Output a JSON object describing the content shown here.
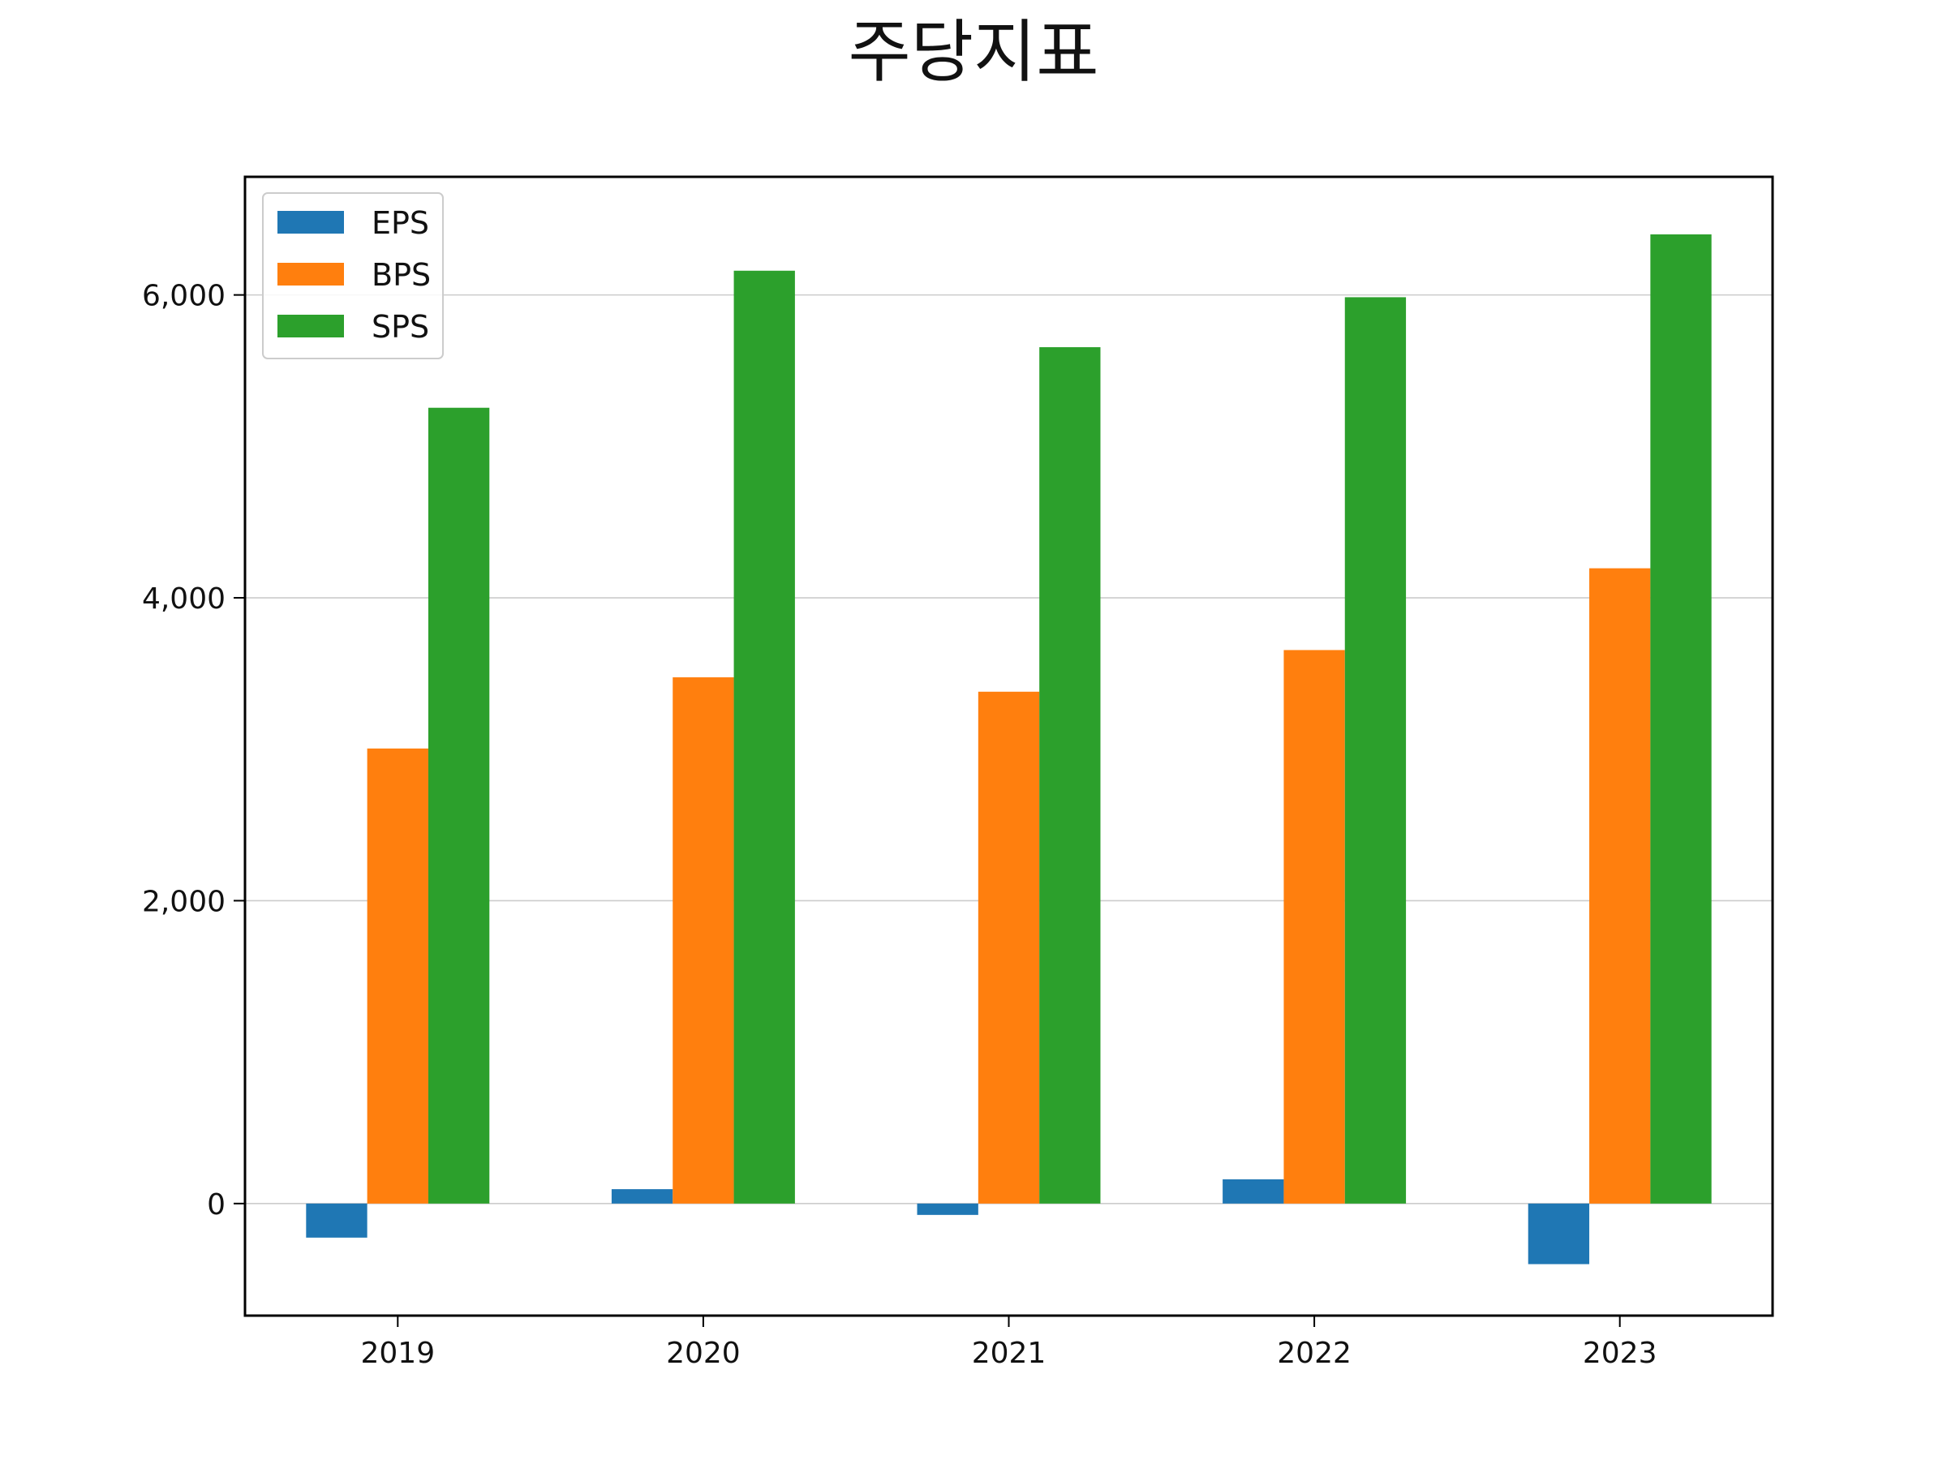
{
  "chart_data": {
    "type": "bar",
    "title": "주당지표",
    "xlabel": "",
    "ylabel": "",
    "categories": [
      "2019",
      "2020",
      "2021",
      "2022",
      "2023"
    ],
    "series": [
      {
        "name": "EPS",
        "color": "#1f77b4",
        "values": [
          -225,
          95,
          -75,
          160,
          -400
        ]
      },
      {
        "name": "BPS",
        "color": "#ff7f0e",
        "values": [
          3005,
          3475,
          3380,
          3655,
          4195
        ]
      },
      {
        "name": "SPS",
        "color": "#2ca02c",
        "values": [
          5255,
          6160,
          5655,
          5985,
          6400
        ]
      }
    ],
    "ylim": [
      -740,
      6780
    ],
    "yticks": [
      0,
      2000,
      4000,
      6000
    ],
    "ytick_labels": [
      "0",
      "2,000",
      "4,000",
      "6,000"
    ],
    "grid": "horizontal",
    "legend": "top-left"
  }
}
